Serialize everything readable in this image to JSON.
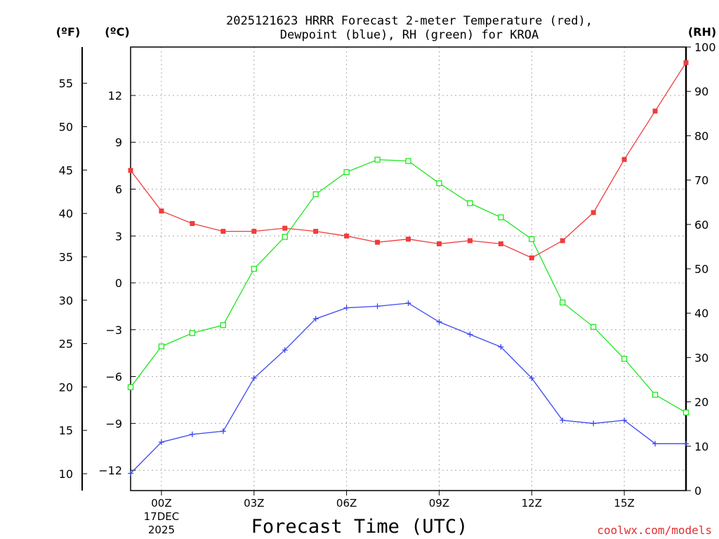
{
  "chart_data": {
    "type": "line",
    "title_line1": "2025121623 HRRR Forecast 2-meter Temperature (red),",
    "title_line2": "Dewpoint (blue), RH (green) for KROA",
    "unit_f": "(ºF)",
    "unit_c": "(ºC)",
    "unit_rh": "(RH)",
    "xlabel": "Forecast Time (UTC)",
    "credit": "coolwx.com/models",
    "x_hours": [
      -1,
      0,
      1,
      2,
      3,
      4,
      5,
      6,
      7,
      8,
      9,
      10,
      11,
      12,
      13,
      14,
      15,
      16,
      17
    ],
    "x_ticks": [
      {
        "hour": 0,
        "label": "00Z",
        "sub1": "17DEC",
        "sub2": "2025"
      },
      {
        "hour": 3,
        "label": "03Z"
      },
      {
        "hour": 6,
        "label": "06Z"
      },
      {
        "hour": 9,
        "label": "09Z"
      },
      {
        "hour": 12,
        "label": "12Z"
      },
      {
        "hour": 15,
        "label": "15Z"
      }
    ],
    "x_range": [
      -1,
      17
    ],
    "celsius_range": [
      -13.3,
      15.1
    ],
    "celsius_ticks": [
      12,
      9,
      6,
      3,
      0,
      -3,
      -6,
      -9,
      -12
    ],
    "fahrenheit_ticks": [
      55,
      50,
      45,
      40,
      35,
      30,
      25,
      20,
      15,
      10
    ],
    "rh_range": [
      0,
      100
    ],
    "rh_ticks": [
      100,
      90,
      80,
      70,
      60,
      50,
      40,
      30,
      20,
      10,
      0
    ],
    "series": [
      {
        "name": "Temperature",
        "color": "#f03c3c",
        "marker": "filled-square",
        "values_c": [
          7.2,
          4.6,
          3.8,
          3.3,
          3.3,
          3.5,
          3.3,
          3.0,
          2.6,
          2.8,
          2.5,
          2.7,
          2.5,
          1.6,
          2.7,
          4.5,
          7.9,
          11.0,
          14.1
        ]
      },
      {
        "name": "Dewpoint",
        "color": "#3c46f0",
        "marker": "plus",
        "values_c": [
          -12.2,
          -10.2,
          -9.7,
          -9.5,
          -6.1,
          -4.3,
          -2.3,
          -1.6,
          -1.5,
          -1.3,
          -2.5,
          -3.3,
          -4.1,
          -6.1,
          -8.8,
          -9.0,
          -8.8,
          -10.3,
          -10.3
        ]
      },
      {
        "name": "RH",
        "color": "#1ee61e",
        "marker": "open-square",
        "values_rh": [
          23.3,
          32.5,
          35.5,
          37.3,
          50.0,
          57.2,
          66.8,
          71.8,
          74.6,
          74.3,
          69.3,
          64.8,
          61.6,
          56.7,
          42.4,
          36.9,
          29.7,
          21.6,
          17.6
        ]
      }
    ]
  }
}
